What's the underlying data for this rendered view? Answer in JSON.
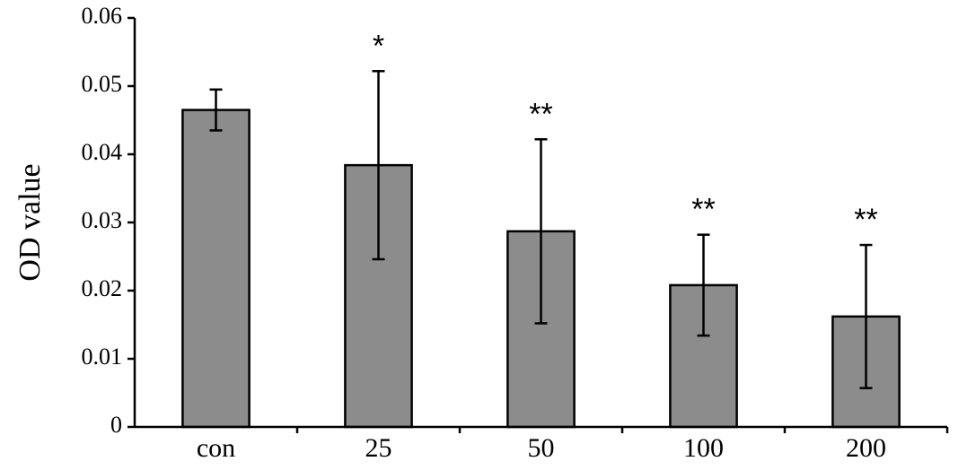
{
  "chart_data": {
    "type": "bar",
    "y_label": "OD value",
    "categories": [
      "con",
      "25",
      "50",
      "100",
      "200"
    ],
    "values": [
      0.0465,
      0.0384,
      0.0287,
      0.0208,
      0.0162
    ],
    "errors": [
      0.003,
      0.0138,
      0.0135,
      0.0074,
      0.0105
    ],
    "annotations": [
      null,
      "*",
      "**",
      "**",
      "**"
    ],
    "color": "#8c8c8c",
    "ylim": [
      0,
      0.06
    ],
    "yticks": [
      0,
      0.01,
      0.02,
      0.03,
      0.04,
      0.05,
      0.06
    ],
    "grid": false
  }
}
